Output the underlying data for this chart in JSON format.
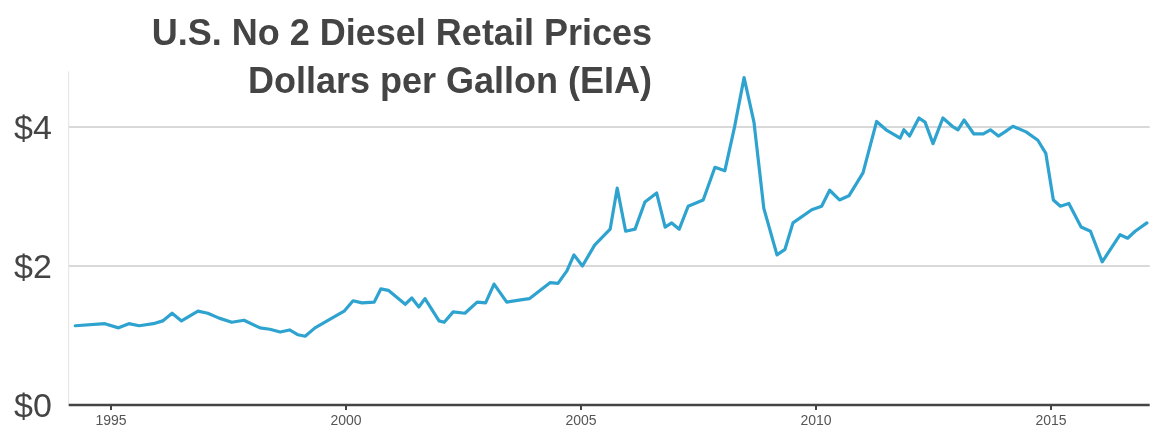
{
  "chart_data": {
    "type": "line",
    "title": "U.S. No 2 Diesel Retail Prices",
    "subtitle": "Dollars per Gallon (EIA)",
    "xlim": [
      1994.1,
      2017.1
    ],
    "xticks": [
      1995,
      2000,
      2005,
      2010,
      2015
    ],
    "yticks": [
      {
        "value": 0,
        "label": "$0"
      },
      {
        "value": 2,
        "label": "$2"
      },
      {
        "value": 4,
        "label": "$4"
      }
    ],
    "ylim": [
      0,
      4.8
    ],
    "grid": "y",
    "marker": "none",
    "line_style": "solid",
    "series": [
      {
        "color": "#2ea3cf",
        "x": [
          1994.24,
          1994.87,
          1995.16,
          1995.38,
          1995.6,
          1995.9,
          1996.1,
          1996.3,
          1996.5,
          1996.85,
          1997.06,
          1997.3,
          1997.57,
          1997.83,
          1998.17,
          1998.38,
          1998.6,
          1998.8,
          1998.98,
          1999.13,
          1999.34,
          1999.7,
          1999.96,
          2000.15,
          2000.34,
          2000.6,
          2000.74,
          2000.9,
          2001.26,
          2001.4,
          2001.55,
          2001.68,
          2001.98,
          2002.09,
          2002.28,
          2002.53,
          2002.79,
          2002.97,
          2003.15,
          2003.42,
          2003.68,
          2003.9,
          2004.34,
          2004.51,
          2004.7,
          2004.85,
          2005.03,
          2005.29,
          2005.62,
          2005.77,
          2005.95,
          2006.15,
          2006.36,
          2006.61,
          2006.79,
          2006.93,
          2007.09,
          2007.28,
          2007.6,
          2007.85,
          2008.06,
          2008.27,
          2008.47,
          2008.68,
          2008.89,
          2009.17,
          2009.34,
          2009.51,
          2009.91,
          2010.12,
          2010.29,
          2010.5,
          2010.7,
          2011.0,
          2011.29,
          2011.49,
          2011.79,
          2011.87,
          2011.99,
          2012.19,
          2012.32,
          2012.49,
          2012.7,
          2012.9,
          2013.02,
          2013.15,
          2013.36,
          2013.56,
          2013.71,
          2013.88,
          2014.02,
          2014.19,
          2014.47,
          2014.72,
          2014.89,
          2015.05,
          2015.2,
          2015.38,
          2015.64,
          2015.84,
          2016.09,
          2016.47,
          2016.63,
          2016.79,
          2017.04
        ],
        "values": [
          1.14,
          1.17,
          1.11,
          1.17,
          1.14,
          1.17,
          1.21,
          1.32,
          1.21,
          1.35,
          1.32,
          1.25,
          1.19,
          1.22,
          1.11,
          1.09,
          1.05,
          1.08,
          1.01,
          0.99,
          1.11,
          1.25,
          1.35,
          1.5,
          1.47,
          1.48,
          1.67,
          1.65,
          1.45,
          1.54,
          1.41,
          1.53,
          1.21,
          1.19,
          1.34,
          1.32,
          1.48,
          1.47,
          1.74,
          1.48,
          1.51,
          1.53,
          1.76,
          1.75,
          1.93,
          2.16,
          2.0,
          2.3,
          2.53,
          3.12,
          2.5,
          2.53,
          2.92,
          3.05,
          2.56,
          2.62,
          2.53,
          2.86,
          2.95,
          3.42,
          3.37,
          4.01,
          4.71,
          4.07,
          2.83,
          2.16,
          2.24,
          2.62,
          2.81,
          2.86,
          3.09,
          2.95,
          3.01,
          3.34,
          4.08,
          3.96,
          3.84,
          3.96,
          3.87,
          4.13,
          4.07,
          3.76,
          4.13,
          4.01,
          3.96,
          4.1,
          3.9,
          3.9,
          3.96,
          3.87,
          3.93,
          4.01,
          3.93,
          3.81,
          3.62,
          2.95,
          2.86,
          2.9,
          2.56,
          2.5,
          2.06,
          2.45,
          2.4,
          2.5,
          2.62
        ]
      }
    ]
  }
}
